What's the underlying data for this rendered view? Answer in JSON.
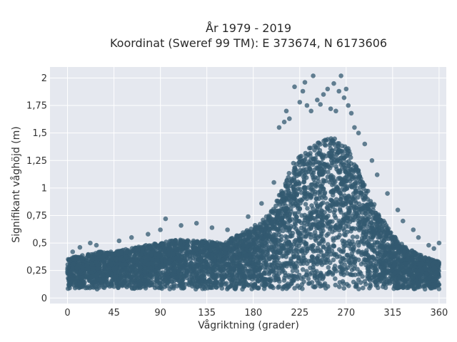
{
  "chart_data": {
    "type": "scatter",
    "title_lines": [
      "År 1979 - 2019",
      "Koordinat (Sweref 99 TM): E 373674, N 6173606"
    ],
    "xlabel": "Vågriktning (grader)",
    "ylabel": "Signifikant våghöjd (m)",
    "xlim": [
      -17,
      367
    ],
    "ylim": [
      -0.05,
      2.1
    ],
    "xticks": [
      0,
      45,
      90,
      135,
      180,
      225,
      270,
      315,
      360
    ],
    "xtick_labels": [
      "0",
      "45",
      "90",
      "135",
      "180",
      "225",
      "270",
      "315",
      "360"
    ],
    "yticks": [
      0,
      0.25,
      0.5,
      0.75,
      1,
      1.25,
      1.5,
      1.75,
      2
    ],
    "ytick_labels": [
      "0",
      "0,25",
      "0,5",
      "0,75",
      "1",
      "1,25",
      "1,5",
      "1,75",
      "2"
    ],
    "grid": true,
    "marker_color": "#335a70",
    "plot_background": "#e5e8ef",
    "envelope": {
      "x": [
        0,
        10,
        20,
        30,
        45,
        60,
        75,
        90,
        100,
        110,
        120,
        135,
        150,
        160,
        170,
        180,
        190,
        200,
        210,
        220,
        230,
        240,
        250,
        260,
        270,
        280,
        290,
        300,
        310,
        320,
        330,
        340,
        350,
        360
      ],
      "lower": [
        0.08,
        0.08,
        0.08,
        0.08,
        0.08,
        0.08,
        0.08,
        0.08,
        0.08,
        0.08,
        0.08,
        0.08,
        0.08,
        0.08,
        0.08,
        0.08,
        0.08,
        0.08,
        0.08,
        0.08,
        0.08,
        0.08,
        0.08,
        0.08,
        0.08,
        0.08,
        0.08,
        0.08,
        0.08,
        0.08,
        0.08,
        0.08,
        0.08,
        0.08
      ],
      "upper": [
        0.36,
        0.38,
        0.4,
        0.42,
        0.42,
        0.45,
        0.48,
        0.5,
        0.52,
        0.53,
        0.52,
        0.52,
        0.5,
        0.55,
        0.6,
        0.65,
        0.72,
        0.82,
        1.05,
        1.25,
        1.35,
        1.4,
        1.45,
        1.45,
        1.4,
        1.2,
        1.0,
        0.8,
        0.65,
        0.52,
        0.45,
        0.4,
        0.36,
        0.33
      ]
    },
    "outliers": [
      [
        5,
        0.42
      ],
      [
        12,
        0.46
      ],
      [
        22,
        0.5
      ],
      [
        28,
        0.48
      ],
      [
        50,
        0.52
      ],
      [
        62,
        0.55
      ],
      [
        78,
        0.58
      ],
      [
        90,
        0.62
      ],
      [
        95,
        0.72
      ],
      [
        110,
        0.66
      ],
      [
        125,
        0.68
      ],
      [
        140,
        0.64
      ],
      [
        155,
        0.62
      ],
      [
        175,
        0.74
      ],
      [
        188,
        0.86
      ],
      [
        200,
        1.05
      ],
      [
        205,
        1.55
      ],
      [
        210,
        1.6
      ],
      [
        212,
        1.7
      ],
      [
        215,
        1.63
      ],
      [
        220,
        1.92
      ],
      [
        225,
        1.78
      ],
      [
        228,
        1.88
      ],
      [
        230,
        1.96
      ],
      [
        232,
        1.75
      ],
      [
        236,
        1.7
      ],
      [
        238,
        2.02
      ],
      [
        242,
        1.8
      ],
      [
        245,
        1.76
      ],
      [
        248,
        1.85
      ],
      [
        252,
        1.9
      ],
      [
        255,
        1.72
      ],
      [
        258,
        1.95
      ],
      [
        260,
        1.7
      ],
      [
        263,
        1.88
      ],
      [
        265,
        2.02
      ],
      [
        268,
        1.82
      ],
      [
        270,
        1.9
      ],
      [
        272,
        1.75
      ],
      [
        275,
        1.68
      ],
      [
        278,
        1.55
      ],
      [
        282,
        1.5
      ],
      [
        288,
        1.4
      ],
      [
        295,
        1.25
      ],
      [
        300,
        1.12
      ],
      [
        310,
        0.95
      ],
      [
        320,
        0.8
      ],
      [
        325,
        0.7
      ],
      [
        335,
        0.62
      ],
      [
        340,
        0.55
      ],
      [
        350,
        0.48
      ],
      [
        355,
        0.45
      ],
      [
        360,
        0.5
      ]
    ]
  }
}
